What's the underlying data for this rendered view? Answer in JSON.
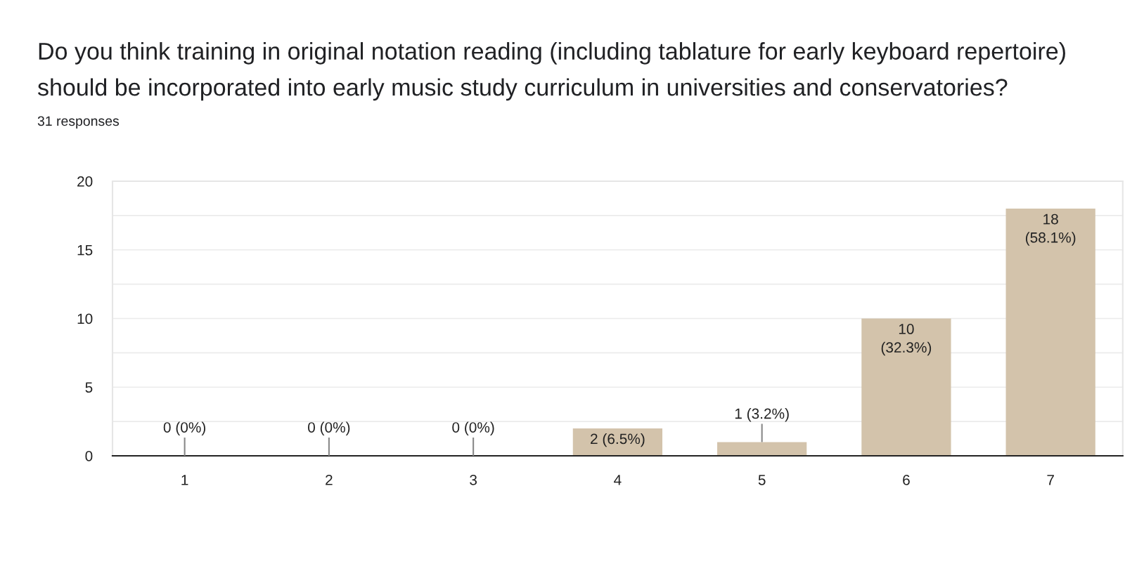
{
  "chart_data": {
    "type": "bar",
    "title": "Do you think training in original notation reading (including tablature for early keyboard repertoire) should be incorporated into early music study curriculum in universities and conservatories?",
    "subtitle": "31 responses",
    "categories": [
      "1",
      "2",
      "3",
      "4",
      "5",
      "6",
      "7"
    ],
    "values": [
      0,
      0,
      0,
      2,
      1,
      10,
      18
    ],
    "color": "#d3c3ab",
    "value_labels": [
      "0 (0%)",
      "0 (0%)",
      "0 (0%)",
      "2 (6.5%)",
      "1 (3.2%)",
      "10\n(32.3%)",
      "18\n(58.1%)"
    ],
    "ylim": [
      0,
      20
    ],
    "yticks": [
      0,
      {
        "value": 2.5,
        "label": null
      },
      5,
      {
        "value": 7.5,
        "label": null
      },
      10,
      {
        "value": 12.5,
        "label": null
      },
      15,
      {
        "value": 17.5,
        "label": null
      },
      20
    ],
    "grid": "y"
  }
}
